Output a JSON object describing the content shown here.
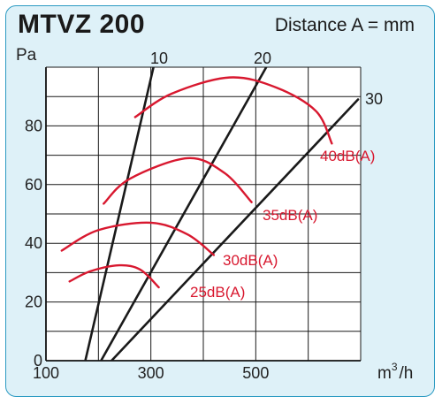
{
  "chart_data": {
    "type": "line",
    "title": "MTVZ 200",
    "subtitle": "Distance A = mm",
    "ylabel": "Pa",
    "xlabel": "m³/h",
    "xlabel_parts": {
      "base": "m",
      "sup": "3",
      "suffix": "/h"
    },
    "xlim": [
      100,
      700
    ],
    "ylim": [
      0,
      100
    ],
    "x_ticks": [
      100,
      300,
      500
    ],
    "y_ticks": [
      0,
      20,
      40,
      60,
      80
    ],
    "grid": true,
    "system_curves": [
      {
        "name": "10",
        "points": [
          [
            175,
            0
          ],
          [
            305,
            100
          ]
        ]
      },
      {
        "name": "20",
        "points": [
          [
            205,
            0
          ],
          [
            520,
            100
          ]
        ]
      },
      {
        "name": "30",
        "points": [
          [
            225,
            0
          ],
          [
            695,
            89
          ]
        ]
      }
    ],
    "sound_curves": [
      {
        "name": "25dB(A)",
        "points": [
          [
            145,
            27
          ],
          [
            185,
            30.5
          ],
          [
            240,
            32.5
          ],
          [
            280,
            31
          ],
          [
            315,
            25
          ]
        ]
      },
      {
        "name": "30dB(A)",
        "points": [
          [
            130,
            37.5
          ],
          [
            200,
            44.5
          ],
          [
            300,
            47
          ],
          [
            370,
            43
          ],
          [
            420,
            36
          ]
        ]
      },
      {
        "name": "35dB(A)",
        "points": [
          [
            210,
            53.5
          ],
          [
            260,
            62
          ],
          [
            370,
            69
          ],
          [
            440,
            64
          ],
          [
            492,
            54
          ]
        ]
      },
      {
        "name": "40dB(A)",
        "points": [
          [
            270,
            83
          ],
          [
            340,
            91
          ],
          [
            450,
            96.5
          ],
          [
            540,
            93
          ],
          [
            615,
            85
          ],
          [
            645,
            74
          ]
        ]
      }
    ],
    "colors": {
      "system": "#1a1a1a",
      "sound": "#d8182f",
      "grid": "#1a1a1a",
      "plot_bg": "#ffffff",
      "panel_bg": "#def1f8",
      "border": "#2b9ac2"
    }
  }
}
